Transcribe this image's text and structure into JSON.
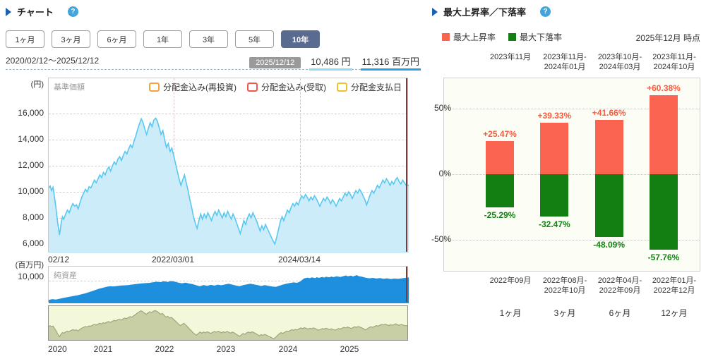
{
  "left_section": {
    "title": "チャート",
    "help_label": "?",
    "period_buttons": [
      {
        "label": "1ヶ月",
        "selected": false
      },
      {
        "label": "3ヶ月",
        "selected": false
      },
      {
        "label": "6ヶ月",
        "selected": false
      },
      {
        "label": "1年",
        "selected": false
      },
      {
        "label": "3年",
        "selected": false
      },
      {
        "label": "5年",
        "selected": false
      },
      {
        "label": "10年",
        "selected": true
      }
    ],
    "range_text": "2020/02/12～2025/12/12",
    "date_badge": "2025/12/12",
    "price_value": "10,486 円",
    "assets_value": "11,316 百万円",
    "price_legend": [
      {
        "name": "reinvest",
        "label": "分配金込み(再投資)",
        "color": "#f5a33c"
      },
      {
        "name": "received",
        "label": "分配金込み(受取)",
        "color": "#f4574a"
      },
      {
        "name": "payday",
        "label": "分配金支払日",
        "color": "#edc22e"
      }
    ]
  },
  "right_section": {
    "title": "最大上昇率／下落率",
    "help_label": "?",
    "asof": "2025年12月 時点"
  },
  "colors": {
    "rise": "#fa6450",
    "fall": "#137f13",
    "rise_text": "#fa5a3c",
    "fall_text": "#118111",
    "price_line": "#58c8f0",
    "price_fill": "#cdecfa",
    "assets_fill": "#1e8fdc",
    "nav_fill": "#c9cfa5",
    "nav_line": "#9fa67c",
    "nav_bg": "#f3f8db"
  },
  "chart_data": [
    {
      "id": "price",
      "type": "area",
      "title": "基準価額",
      "ylabel": "(円)",
      "yticks": [
        16000,
        14000,
        12000,
        10000,
        8000,
        6000
      ],
      "ylim": [
        5300,
        18700
      ],
      "x_labels": [
        {
          "f": 0,
          "label": "02/12",
          "align": "left"
        },
        {
          "f": 348,
          "label": "2022/03/01"
        },
        {
          "f": 699,
          "label": "2024/03/14"
        }
      ],
      "end_value": 10486,
      "points": [
        [
          0,
          10300
        ],
        [
          4,
          10450
        ],
        [
          8,
          10100
        ],
        [
          12,
          10350
        ],
        [
          16,
          9600
        ],
        [
          20,
          8800
        ],
        [
          25,
          7600
        ],
        [
          30,
          6700
        ],
        [
          34,
          7500
        ],
        [
          38,
          8100
        ],
        [
          42,
          7900
        ],
        [
          47,
          8300
        ],
        [
          52,
          8600
        ],
        [
          57,
          8400
        ],
        [
          62,
          8800
        ],
        [
          67,
          9100
        ],
        [
          72,
          8900
        ],
        [
          77,
          9000
        ],
        [
          82,
          8700
        ],
        [
          87,
          9200
        ],
        [
          92,
          9600
        ],
        [
          97,
          9900
        ],
        [
          102,
          10200
        ],
        [
          107,
          10000
        ],
        [
          112,
          10400
        ],
        [
          117,
          10300
        ],
        [
          122,
          10600
        ],
        [
          127,
          10900
        ],
        [
          132,
          10700
        ],
        [
          137,
          11000
        ],
        [
          142,
          11300
        ],
        [
          147,
          11100
        ],
        [
          152,
          11500
        ],
        [
          157,
          11300
        ],
        [
          162,
          11700
        ],
        [
          167,
          11900
        ],
        [
          172,
          11600
        ],
        [
          177,
          12000
        ],
        [
          182,
          12300
        ],
        [
          187,
          12100
        ],
        [
          192,
          12500
        ],
        [
          197,
          12700
        ],
        [
          202,
          12400
        ],
        [
          207,
          12800
        ],
        [
          212,
          13100
        ],
        [
          217,
          12900
        ],
        [
          222,
          13300
        ],
        [
          227,
          13600
        ],
        [
          232,
          13400
        ],
        [
          237,
          13900
        ],
        [
          242,
          14300
        ],
        [
          247,
          14800
        ],
        [
          252,
          15200
        ],
        [
          257,
          15600
        ],
        [
          262,
          15300
        ],
        [
          267,
          14800
        ],
        [
          272,
          14400
        ],
        [
          277,
          14900
        ],
        [
          282,
          15300
        ],
        [
          287,
          15000
        ],
        [
          292,
          15500
        ],
        [
          297,
          15650
        ],
        [
          302,
          15400
        ],
        [
          307,
          14900
        ],
        [
          312,
          14400
        ],
        [
          317,
          14700
        ],
        [
          322,
          14000
        ],
        [
          327,
          13400
        ],
        [
          332,
          13700
        ],
        [
          337,
          13100
        ],
        [
          342,
          13350
        ],
        [
          347,
          12800
        ],
        [
          352,
          12200
        ],
        [
          357,
          11600
        ],
        [
          362,
          11000
        ],
        [
          367,
          10500
        ],
        [
          372,
          10900
        ],
        [
          377,
          11300
        ],
        [
          382,
          10700
        ],
        [
          387,
          10100
        ],
        [
          392,
          9400
        ],
        [
          397,
          8800
        ],
        [
          402,
          8100
        ],
        [
          407,
          7600
        ],
        [
          412,
          7200
        ],
        [
          417,
          7800
        ],
        [
          422,
          8300
        ],
        [
          427,
          7900
        ],
        [
          432,
          8300
        ],
        [
          437,
          8000
        ],
        [
          442,
          8400
        ],
        [
          447,
          8100
        ],
        [
          452,
          7800
        ],
        [
          457,
          8200
        ],
        [
          462,
          8500
        ],
        [
          467,
          8200
        ],
        [
          472,
          8600
        ],
        [
          477,
          8300
        ],
        [
          482,
          8000
        ],
        [
          487,
          8400
        ],
        [
          492,
          8100
        ],
        [
          497,
          8500
        ],
        [
          502,
          8200
        ],
        [
          507,
          7900
        ],
        [
          512,
          8300
        ],
        [
          517,
          8000
        ],
        [
          522,
          7600
        ],
        [
          527,
          7200
        ],
        [
          532,
          6800
        ],
        [
          537,
          7300
        ],
        [
          542,
          7800
        ],
        [
          547,
          7500
        ],
        [
          552,
          8000
        ],
        [
          557,
          8300
        ],
        [
          562,
          8000
        ],
        [
          567,
          8400
        ],
        [
          572,
          8100
        ],
        [
          577,
          7800
        ],
        [
          582,
          7400
        ],
        [
          587,
          7000
        ],
        [
          592,
          7400
        ],
        [
          597,
          7100
        ],
        [
          602,
          7500
        ],
        [
          607,
          7200
        ],
        [
          612,
          6900
        ],
        [
          617,
          6600
        ],
        [
          622,
          6300
        ],
        [
          628,
          6000
        ],
        [
          633,
          6500
        ],
        [
          638,
          7100
        ],
        [
          643,
          7700
        ],
        [
          648,
          8100
        ],
        [
          653,
          7800
        ],
        [
          658,
          8200
        ],
        [
          663,
          8600
        ],
        [
          668,
          8400
        ],
        [
          673,
          8800
        ],
        [
          678,
          9100
        ],
        [
          683,
          8900
        ],
        [
          688,
          9200
        ],
        [
          693,
          9000
        ],
        [
          698,
          9400
        ],
        [
          703,
          9700
        ],
        [
          708,
          9500
        ],
        [
          713,
          9800
        ],
        [
          718,
          9600
        ],
        [
          723,
          9300
        ],
        [
          728,
          9600
        ],
        [
          733,
          9400
        ],
        [
          738,
          9700
        ],
        [
          743,
          9500
        ],
        [
          748,
          9200
        ],
        [
          753,
          8900
        ],
        [
          758,
          9200
        ],
        [
          763,
          9500
        ],
        [
          768,
          9300
        ],
        [
          773,
          9600
        ],
        [
          778,
          9400
        ],
        [
          783,
          9100
        ],
        [
          788,
          9400
        ],
        [
          793,
          9200
        ],
        [
          798,
          8900
        ],
        [
          803,
          9200
        ],
        [
          808,
          9500
        ],
        [
          813,
          9300
        ],
        [
          818,
          9600
        ],
        [
          823,
          9900
        ],
        [
          828,
          9700
        ],
        [
          833,
          10000
        ],
        [
          838,
          9800
        ],
        [
          843,
          9500
        ],
        [
          848,
          9800
        ],
        [
          853,
          10100
        ],
        [
          858,
          9900
        ],
        [
          863,
          10200
        ],
        [
          868,
          10000
        ],
        [
          873,
          9700
        ],
        [
          878,
          9400
        ],
        [
          883,
          9000
        ],
        [
          888,
          9400
        ],
        [
          893,
          9800
        ],
        [
          898,
          10100
        ],
        [
          903,
          9900
        ],
        [
          908,
          10200
        ],
        [
          913,
          10500
        ],
        [
          918,
          10300
        ],
        [
          923,
          10600
        ],
        [
          928,
          10900
        ],
        [
          933,
          10700
        ],
        [
          938,
          11000
        ],
        [
          943,
          10800
        ],
        [
          948,
          10500
        ],
        [
          953,
          10800
        ],
        [
          958,
          10600
        ],
        [
          963,
          10900
        ],
        [
          968,
          11100
        ],
        [
          973,
          10800
        ],
        [
          978,
          10600
        ],
        [
          983,
          10900
        ],
        [
          988,
          10700
        ],
        [
          993,
          10500
        ],
        [
          1000,
          10486
        ]
      ]
    },
    {
      "id": "assets",
      "type": "area",
      "title": "純資産",
      "ylabel": "(百万円)",
      "yticks": [
        10000
      ],
      "end_value": 11316,
      "points": [
        [
          0,
          1300
        ],
        [
          10,
          1700
        ],
        [
          20,
          1500
        ],
        [
          40,
          2200
        ],
        [
          60,
          2800
        ],
        [
          80,
          3400
        ],
        [
          100,
          4200
        ],
        [
          120,
          5200
        ],
        [
          140,
          6300
        ],
        [
          160,
          7100
        ],
        [
          170,
          7400
        ],
        [
          180,
          7300
        ],
        [
          200,
          7700
        ],
        [
          220,
          7900
        ],
        [
          240,
          8300
        ],
        [
          260,
          8700
        ],
        [
          280,
          8900
        ],
        [
          300,
          9400
        ],
        [
          310,
          9200
        ],
        [
          320,
          9600
        ],
        [
          330,
          9300
        ],
        [
          340,
          9700
        ],
        [
          350,
          9400
        ],
        [
          360,
          9000
        ],
        [
          370,
          8700
        ],
        [
          380,
          9000
        ],
        [
          390,
          8600
        ],
        [
          400,
          8300
        ],
        [
          410,
          7800
        ],
        [
          420,
          7400
        ],
        [
          430,
          7900
        ],
        [
          440,
          7600
        ],
        [
          450,
          8000
        ],
        [
          460,
          7700
        ],
        [
          470,
          8100
        ],
        [
          480,
          7800
        ],
        [
          490,
          8200
        ],
        [
          500,
          8500
        ],
        [
          510,
          8100
        ],
        [
          520,
          7700
        ],
        [
          530,
          7400
        ],
        [
          540,
          7900
        ],
        [
          550,
          8200
        ],
        [
          560,
          8500
        ],
        [
          570,
          8200
        ],
        [
          580,
          7900
        ],
        [
          590,
          7500
        ],
        [
          600,
          7900
        ],
        [
          610,
          7600
        ],
        [
          620,
          7300
        ],
        [
          630,
          7100
        ],
        [
          640,
          7600
        ],
        [
          650,
          8100
        ],
        [
          660,
          8500
        ],
        [
          670,
          8800
        ],
        [
          680,
          9100
        ],
        [
          690,
          8900
        ],
        [
          700,
          9600
        ],
        [
          705,
          10300
        ],
        [
          710,
          10900
        ],
        [
          720,
          11200
        ],
        [
          725,
          10900
        ],
        [
          730,
          11300
        ],
        [
          740,
          11000
        ],
        [
          745,
          11400
        ],
        [
          750,
          11100
        ],
        [
          760,
          11500
        ],
        [
          765,
          11200
        ],
        [
          770,
          11600
        ],
        [
          780,
          11300
        ],
        [
          785,
          11700
        ],
        [
          790,
          11400
        ],
        [
          800,
          11800
        ],
        [
          810,
          11500
        ],
        [
          820,
          11900
        ],
        [
          825,
          12200
        ],
        [
          830,
          11800
        ],
        [
          840,
          12100
        ],
        [
          845,
          11700
        ],
        [
          850,
          12000
        ],
        [
          855,
          12300
        ],
        [
          860,
          11900
        ],
        [
          870,
          11600
        ],
        [
          880,
          11200
        ],
        [
          890,
          10900
        ],
        [
          900,
          11100
        ],
        [
          910,
          10800
        ],
        [
          920,
          11000
        ],
        [
          930,
          10700
        ],
        [
          940,
          10900
        ],
        [
          950,
          10600
        ],
        [
          960,
          10800
        ],
        [
          970,
          10650
        ],
        [
          980,
          10900
        ],
        [
          990,
          11100
        ],
        [
          1000,
          11316
        ]
      ]
    },
    {
      "id": "navigator",
      "type": "area",
      "source": "price",
      "x_labels": [
        {
          "f": 0,
          "label": "2020",
          "align": "left"
        },
        {
          "f": 152,
          "label": "2021"
        },
        {
          "f": 323,
          "label": "2022"
        },
        {
          "f": 495,
          "label": "2023"
        },
        {
          "f": 666,
          "label": "2024"
        },
        {
          "f": 838,
          "label": "2025"
        }
      ]
    },
    {
      "id": "updown",
      "type": "bar",
      "legend": [
        {
          "label": "最大上昇率",
          "key": "rise"
        },
        {
          "label": "最大下落率",
          "key": "fall"
        }
      ],
      "yticks": [
        {
          "v": 50,
          "label": "50%"
        },
        {
          "v": 0,
          "label": "0%"
        },
        {
          "v": -50,
          "label": "-50%"
        }
      ],
      "ylim": [
        -74,
        73
      ],
      "categories": [
        "1ヶ月",
        "3ヶ月",
        "6ヶ月",
        "12ヶ月"
      ],
      "rise": {
        "values": [
          25.47,
          39.33,
          41.66,
          60.38
        ],
        "labels": [
          "+25.47%",
          "+39.33%",
          "+41.66%",
          "+60.38%"
        ],
        "periods": [
          [
            "2023年11月"
          ],
          [
            "2023年11月-",
            "2024年01月"
          ],
          [
            "2023年10月-",
            "2024年03月"
          ],
          [
            "2023年11月-",
            "2024年10月"
          ]
        ]
      },
      "fall": {
        "values": [
          -25.29,
          -32.47,
          -48.09,
          -57.76
        ],
        "labels": [
          "-25.29%",
          "-32.47%",
          "-48.09%",
          "-57.76%"
        ],
        "periods": [
          [
            "2022年09月"
          ],
          [
            "2022年08月-",
            "2022年10月"
          ],
          [
            "2022年04月-",
            "2022年09月"
          ],
          [
            "2022年01月-",
            "2022年12月"
          ]
        ]
      }
    }
  ]
}
